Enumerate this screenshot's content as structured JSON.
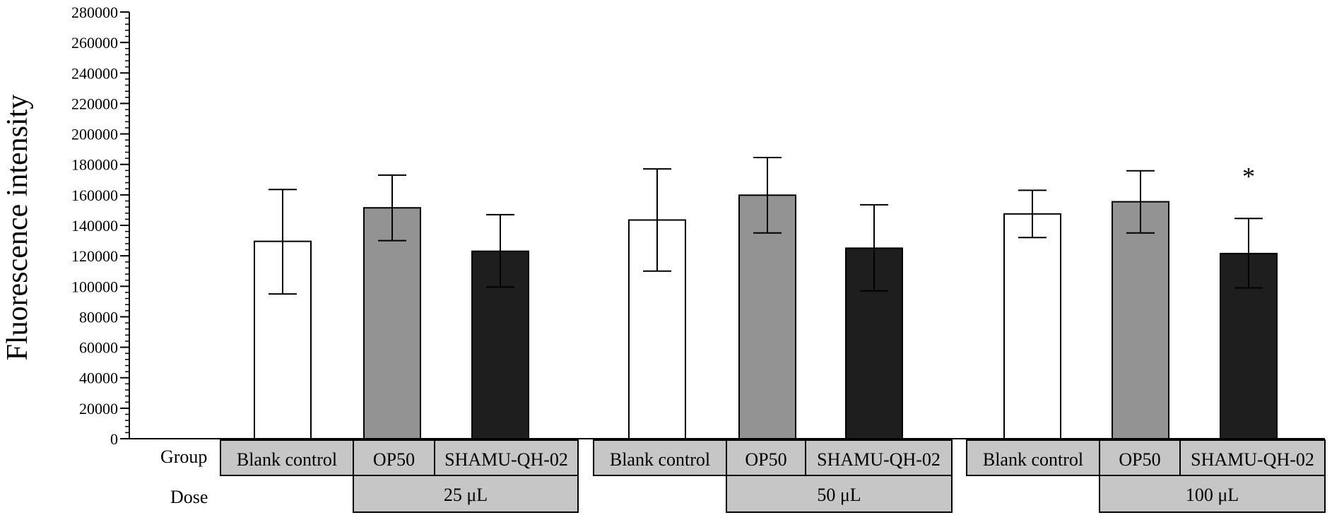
{
  "chart_data": {
    "type": "bar",
    "title": "",
    "xlabel": "",
    "ylabel": "Fluorescence intensity",
    "ylim": [
      0,
      280000
    ],
    "y_ticks": [
      0,
      20000,
      40000,
      60000,
      80000,
      100000,
      120000,
      140000,
      160000,
      180000,
      200000,
      220000,
      240000,
      260000,
      280000
    ],
    "y_tick_labels": [
      "0",
      "20000",
      "40000",
      "60000",
      "80000",
      "100000",
      "120000",
      "140000",
      "160000",
      "180000",
      "200000",
      "220000",
      "240000",
      "260000",
      "280000"
    ],
    "grid": false,
    "categories": [
      "Blank control",
      "OP50",
      "SHAMU-QH-02",
      "Blank control",
      "OP50",
      "SHAMU-QH-02",
      "Blank control",
      "OP50",
      "SHAMU-QH-02"
    ],
    "values": [
      129500,
      151500,
      123000,
      143500,
      159800,
      125000,
      147500,
      155500,
      121500
    ],
    "err_upper": [
      163500,
      173000,
      147000,
      177000,
      184500,
      153500,
      163000,
      175800,
      144500
    ],
    "err_lower": [
      95000,
      130000,
      99500,
      110000,
      135000,
      97000,
      132000,
      135000,
      99000
    ],
    "bar_colors": [
      "#ffffff",
      "#939393",
      "#1e1e1e",
      "#ffffff",
      "#939393",
      "#1e1e1e",
      "#ffffff",
      "#939393",
      "#1e1e1e"
    ],
    "annotations": [
      {
        "bar_index": 8,
        "text": "*"
      }
    ],
    "table": {
      "group_label": "Group",
      "dose_label": "Dose",
      "doses": [
        "25 μL",
        "50  μL",
        "100 μL"
      ]
    },
    "colors": {
      "cell_fill": "#c6c6c6",
      "axis": "#000000"
    }
  }
}
